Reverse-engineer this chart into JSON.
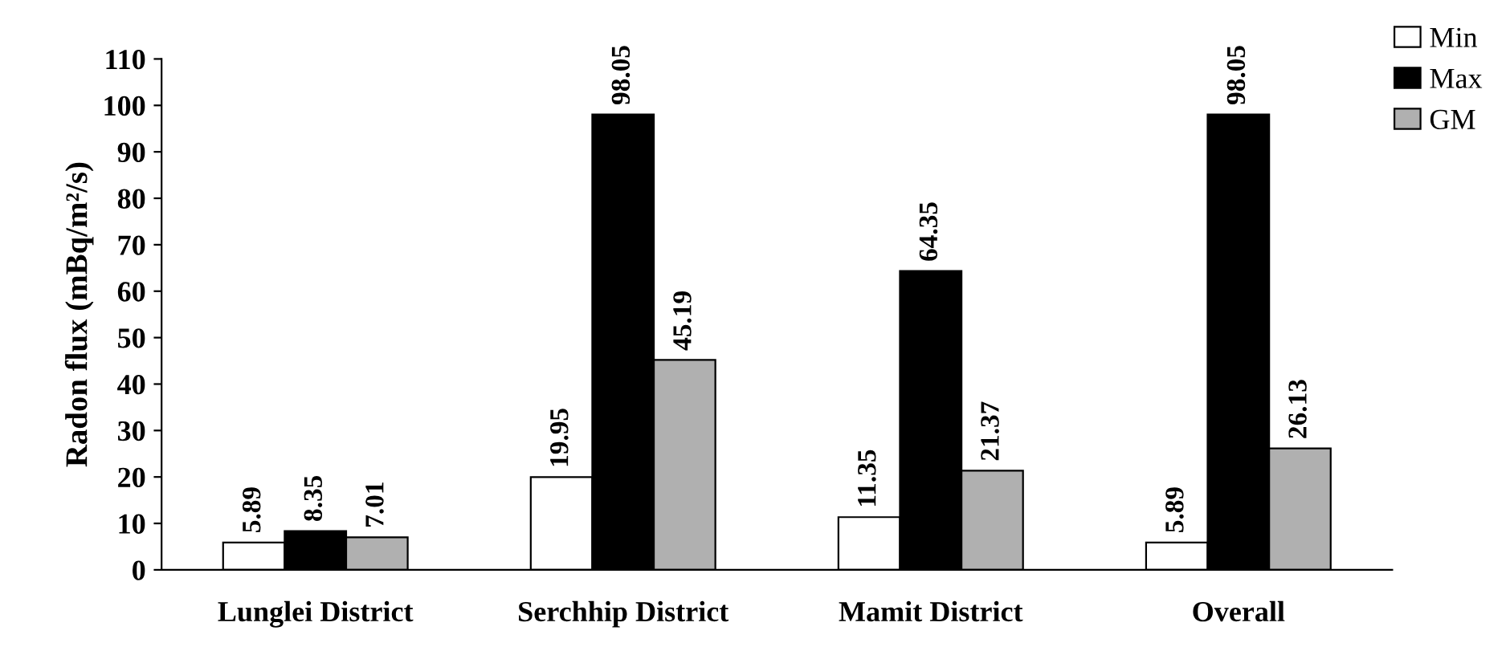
{
  "chart_data": {
    "type": "bar",
    "ylabel": "Radon flux (mBq/m²/s)",
    "categories": [
      "Lunglei District",
      "Serchhip District",
      "Mamit District",
      "Overall"
    ],
    "series": [
      {
        "name": "Min",
        "color": "#ffffff",
        "values": [
          5.89,
          19.95,
          11.35,
          5.89
        ]
      },
      {
        "name": "Max",
        "color": "#000000",
        "values": [
          8.35,
          98.05,
          64.35,
          98.05
        ]
      },
      {
        "name": "GM",
        "color": "#b0b0b0",
        "values": [
          7.01,
          45.19,
          21.37,
          26.13
        ]
      }
    ],
    "ylim": [
      0,
      110
    ],
    "yticks": [
      0,
      10,
      20,
      30,
      40,
      50,
      60,
      70,
      80,
      90,
      100,
      110
    ],
    "data_labels": true,
    "legend": "top right",
    "grid": false
  }
}
